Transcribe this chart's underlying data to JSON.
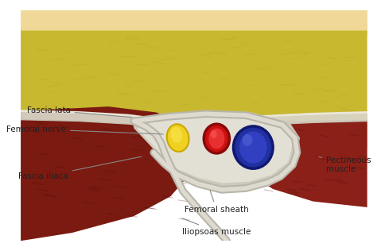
{
  "bg_color": "#ffffff",
  "fat_layer_color": "#c8b830",
  "skin_color": "#f0d898",
  "muscle_left_color": "#7a1a10",
  "muscle_right_color": "#8a2018",
  "nerve_yellow_color": "#f0d020",
  "nerve_yellow_stroke": "#c8a800",
  "artery_red_color": "#cc1010",
  "artery_red_stroke": "#880808",
  "vein_blue_color": "#2030a0",
  "vein_blue_stroke": "#101870",
  "line_color": "#888888",
  "text_color": "#222222",
  "labels": {
    "fascia_lata": "Fascia lata",
    "femoral_nerve": "Femoral nerve",
    "fascia_iliaca": "Fascia iliaca",
    "femoral_sheath": "Femoral sheath",
    "iliopsoas_muscle": "Iliopsoas muscle",
    "pectineous_muscle": "Pectineous\nmuscle"
  },
  "figsize": [
    4.74,
    3.16
  ],
  "dpi": 100
}
